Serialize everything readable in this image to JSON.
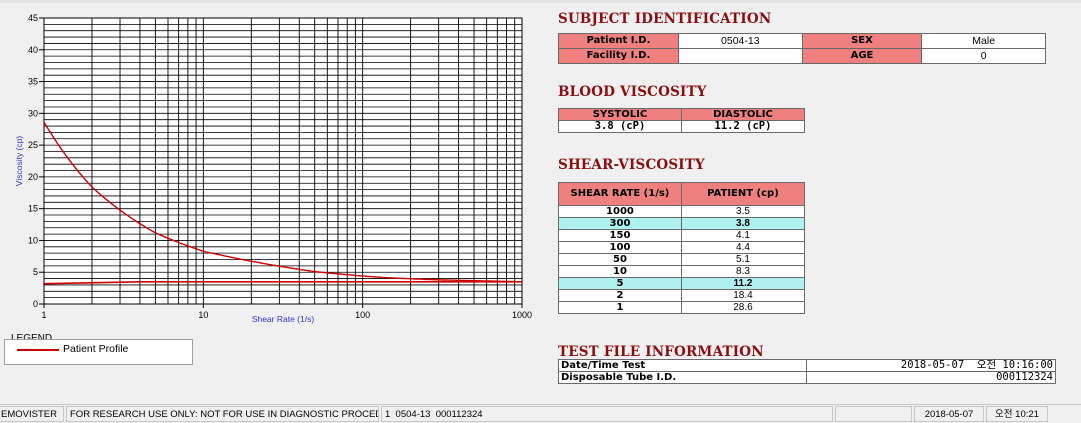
{
  "subject_identification": {
    "title": "SUBJECT IDENTIFICATION",
    "patient_id_label": "Patient I.D.",
    "patient_id_value": "0504-13",
    "sex_label": "SEX",
    "sex_value": "Male",
    "facility_id_label": "Facility I.D.",
    "facility_id_value": "",
    "age_label": "AGE",
    "age_value": "0"
  },
  "blood_viscosity": {
    "title": "BLOOD VISCOSITY",
    "systolic_label": "SYSTOLIC",
    "diastolic_label": "DIASTOLIC",
    "systolic_value": "3.8 (cP)",
    "diastolic_value": "11.2 (cP)"
  },
  "shear_viscosity": {
    "title": "SHEAR-VISCOSITY",
    "col_shear": "SHEAR RATE (1/s)",
    "col_patient": "PATIENT (cp)",
    "rows": [
      {
        "shear": "1000",
        "patient": "3.5",
        "highlight": false
      },
      {
        "shear": "300",
        "patient": "3.8",
        "highlight": true
      },
      {
        "shear": "150",
        "patient": "4.1",
        "highlight": false
      },
      {
        "shear": "100",
        "patient": "4.4",
        "highlight": false
      },
      {
        "shear": "50",
        "patient": "5.1",
        "highlight": false
      },
      {
        "shear": "10",
        "patient": "8.3",
        "highlight": false
      },
      {
        "shear": "5",
        "patient": "11.2",
        "highlight": true
      },
      {
        "shear": "2",
        "patient": "18.4",
        "highlight": false
      },
      {
        "shear": "1",
        "patient": "28.6",
        "highlight": false
      }
    ]
  },
  "test_file_information": {
    "title": "TEST FILE INFORMATION",
    "datetime_label": "Date/Time Test",
    "datetime_value": "2018-05-07  오전 10:16:00",
    "tube_label": "Disposable Tube I.D.",
    "tube_value": "000112324"
  },
  "legend": {
    "title": "LEGEND",
    "entry": "Patient Profile"
  },
  "status_bar": {
    "app": "EMOVISTER",
    "notice": "FOR RESEARCH USE ONLY: NOT FOR USE IN DIAGNOSTIC PROCEDURES",
    "file": "1  0504-13  000112324",
    "empty": "",
    "date": "2018-05-07",
    "time": "오전 10:21"
  },
  "colors": {
    "header_fill": "#f08080",
    "highlight_fill": "#aff0f0",
    "title_color": "#8b0d0d",
    "curve_color": "#cc0000"
  },
  "chart_data": {
    "type": "line",
    "xlabel": "Shear Rate (1/s)",
    "ylabel": "Viscosity (cp)",
    "x_scale": "log",
    "xlim": [
      1,
      1000
    ],
    "ylim": [
      0,
      45
    ],
    "x_ticks": [
      "1",
      "10",
      "100",
      "1000"
    ],
    "y_ticks": [
      "0",
      "5",
      "10",
      "15",
      "20",
      "25",
      "30",
      "35",
      "40",
      "45"
    ],
    "grid": true,
    "series": [
      {
        "name": "Patient Profile",
        "color": "#cc0000",
        "x": [
          1,
          2,
          5,
          10,
          50,
          100,
          150,
          300,
          1000
        ],
        "y": [
          28.6,
          18.4,
          11.2,
          8.3,
          5.1,
          4.4,
          4.1,
          3.8,
          3.5
        ]
      }
    ],
    "reference_line": {
      "color": "#cc0000",
      "x": [
        1,
        4,
        1000
      ],
      "y": [
        3.2,
        3.5,
        3.5
      ]
    }
  }
}
